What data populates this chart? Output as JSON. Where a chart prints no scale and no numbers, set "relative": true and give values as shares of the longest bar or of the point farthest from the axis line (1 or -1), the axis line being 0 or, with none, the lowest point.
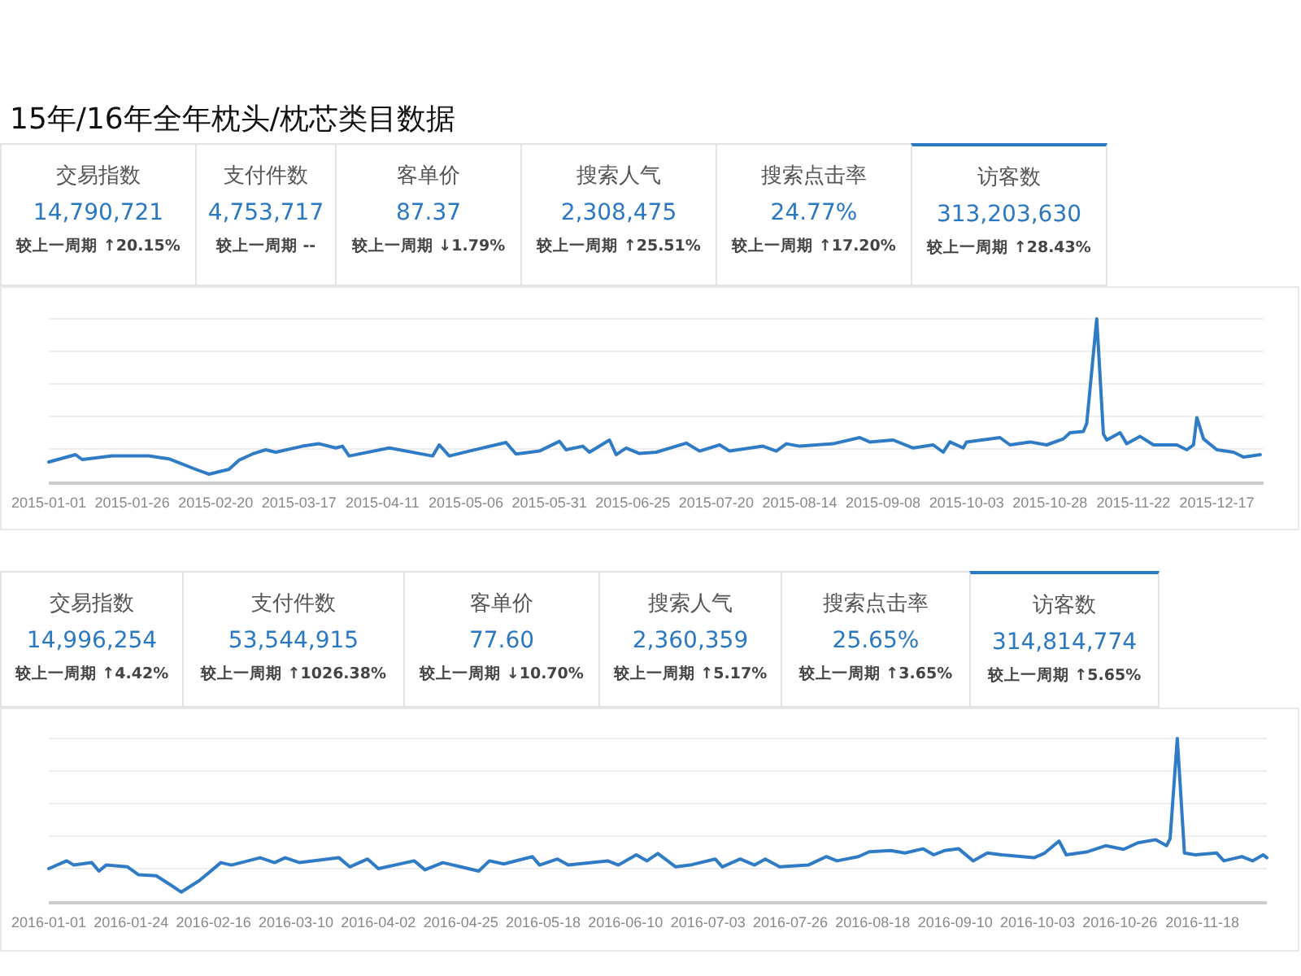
{
  "chart_data": [
    {
      "type": "other",
      "title": "15年/16年全年枕头/枕芯类目数据",
      "categories": [
        "交易指数",
        "支付件数",
        "客单价",
        "搜索人气",
        "搜索点击率",
        "访客数"
      ],
      "value_labels": [
        "14,790,721",
        "4,753,717",
        "87.37",
        "2,308,475",
        "24.77%",
        "313,203,630"
      ],
      "annotations": [
        "较上一周期 ↑20.15%",
        "较上一周期 --",
        "较上一周期 ↓1.79%",
        "较上一周期 ↑25.51%",
        "较上一周期 ↑17.20%",
        "较上一周期 ↑28.43%"
      ]
    },
    {
      "type": "line",
      "relative": true,
      "grid": "y",
      "color": "#2f7bc5",
      "x": [
        "2015-01-01",
        "2015-01-09",
        "2015-01-11",
        "2015-01-20",
        "2015-01-31",
        "2015-02-06",
        "2015-02-14",
        "2015-02-18",
        "2015-02-24",
        "2015-02-27",
        "2015-03-03",
        "2015-03-07",
        "2015-03-10",
        "2015-03-18",
        "2015-03-23",
        "2015-03-28",
        "2015-03-30",
        "2015-04-01",
        "2015-04-13",
        "2015-04-26",
        "2015-04-28",
        "2015-05-01",
        "2015-05-07",
        "2015-05-18",
        "2015-05-21",
        "2015-05-28",
        "2015-06-03",
        "2015-06-05",
        "2015-06-10",
        "2015-06-12",
        "2015-06-18",
        "2015-06-20",
        "2015-06-23",
        "2015-06-27",
        "2015-07-02",
        "2015-07-11",
        "2015-07-15",
        "2015-07-21",
        "2015-07-24",
        "2015-08-03",
        "2015-08-07",
        "2015-08-10",
        "2015-08-14",
        "2015-08-24",
        "2015-09-01",
        "2015-09-04",
        "2015-09-11",
        "2015-09-17",
        "2015-09-23",
        "2015-09-26",
        "2015-09-28",
        "2015-10-02",
        "2015-10-03",
        "2015-10-13",
        "2015-10-16",
        "2015-10-22",
        "2015-10-27",
        "2015-11-01",
        "2015-11-03",
        "2015-11-07",
        "2015-11-08",
        "2015-11-11",
        "2015-11-13",
        "2015-11-14",
        "2015-11-18",
        "2015-11-20",
        "2015-11-24",
        "2015-11-28",
        "2015-12-05",
        "2015-12-08",
        "2015-12-10",
        "2015-12-11",
        "2015-12-13",
        "2015-12-17",
        "2015-12-22",
        "2015-12-25",
        "2015-12-30"
      ],
      "values": [
        0.12,
        0.165,
        0.135,
        0.157,
        0.157,
        0.139,
        0.075,
        0.045,
        0.075,
        0.131,
        0.169,
        0.195,
        0.18,
        0.217,
        0.232,
        0.206,
        0.217,
        0.157,
        0.206,
        0.157,
        0.225,
        0.157,
        0.187,
        0.24,
        0.169,
        0.187,
        0.247,
        0.195,
        0.217,
        0.18,
        0.255,
        0.165,
        0.206,
        0.172,
        0.18,
        0.236,
        0.187,
        0.225,
        0.187,
        0.217,
        0.187,
        0.232,
        0.217,
        0.232,
        0.27,
        0.243,
        0.255,
        0.206,
        0.225,
        0.18,
        0.243,
        0.206,
        0.243,
        0.27,
        0.225,
        0.243,
        0.225,
        0.262,
        0.3,
        0.307,
        0.356,
        1.0,
        0.292,
        0.255,
        0.3,
        0.232,
        0.277,
        0.225,
        0.225,
        0.195,
        0.225,
        0.393,
        0.262,
        0.195,
        0.18,
        0.15,
        0.165
      ],
      "xlim": [
        "2015-01-01",
        "2015-12-31"
      ],
      "xticks": [
        "2015-01-01",
        "2015-01-26",
        "2015-02-20",
        "2015-03-17",
        "2015-04-11",
        "2015-05-06",
        "2015-05-31",
        "2015-06-25",
        "2015-07-20",
        "2015-08-14",
        "2015-09-08",
        "2015-10-03",
        "2015-10-28",
        "2015-11-22",
        "2015-12-17"
      ]
    },
    {
      "type": "other",
      "categories": [
        "交易指数",
        "支付件数",
        "客单价",
        "搜索人气",
        "搜索点击率",
        "访客数"
      ],
      "value_labels": [
        "14,996,254",
        "53,544,915",
        "77.60",
        "2,360,359",
        "25.65%",
        "314,814,774"
      ],
      "annotations": [
        "较上一周期 ↑4.42%",
        "较上一周期 ↑1026.38%",
        "较上一周期 ↓10.70%",
        "较上一周期 ↑5.17%",
        "较上一周期 ↑3.65%",
        "较上一周期 ↑5.65%"
      ]
    },
    {
      "type": "line",
      "relative": true,
      "grid": "y",
      "color": "#2f7bc5",
      "x": [
        "2016-01-01",
        "2016-01-06",
        "2016-01-08",
        "2016-01-13",
        "2016-01-15",
        "2016-01-17",
        "2016-01-23",
        "2016-01-26",
        "2016-01-31",
        "2016-02-04",
        "2016-02-07",
        "2016-02-12",
        "2016-02-18",
        "2016-02-21",
        "2016-02-29",
        "2016-03-04",
        "2016-03-07",
        "2016-03-11",
        "2016-03-22",
        "2016-03-25",
        "2016-03-30",
        "2016-04-02",
        "2016-04-12",
        "2016-04-15",
        "2016-04-20",
        "2016-04-25",
        "2016-04-30",
        "2016-05-03",
        "2016-05-07",
        "2016-05-15",
        "2016-05-17",
        "2016-05-22",
        "2016-05-25",
        "2016-06-05",
        "2016-06-08",
        "2016-06-13",
        "2016-06-16",
        "2016-06-19",
        "2016-06-24",
        "2016-06-28",
        "2016-07-05",
        "2016-07-07",
        "2016-07-12",
        "2016-07-16",
        "2016-07-19",
        "2016-07-23",
        "2016-07-31",
        "2016-08-05",
        "2016-08-08",
        "2016-08-14",
        "2016-08-17",
        "2016-08-23",
        "2016-08-27",
        "2016-09-01",
        "2016-09-04",
        "2016-09-07",
        "2016-09-11",
        "2016-09-15",
        "2016-09-19",
        "2016-09-23",
        "2016-10-02",
        "2016-10-05",
        "2016-10-09",
        "2016-10-11",
        "2016-10-17",
        "2016-10-22",
        "2016-10-27",
        "2016-10-31",
        "2016-11-05",
        "2016-11-08",
        "2016-11-09",
        "2016-11-11",
        "2016-11-13",
        "2016-11-16",
        "2016-11-22",
        "2016-11-24",
        "2016-11-29",
        "2016-12-02",
        "2016-12-05",
        "2016-12-06"
      ],
      "values": [
        0.2,
        0.248,
        0.222,
        0.237,
        0.185,
        0.222,
        0.211,
        0.163,
        0.156,
        0.1,
        0.056,
        0.126,
        0.237,
        0.222,
        0.267,
        0.237,
        0.267,
        0.237,
        0.267,
        0.211,
        0.259,
        0.2,
        0.248,
        0.193,
        0.237,
        0.211,
        0.185,
        0.248,
        0.229,
        0.274,
        0.222,
        0.259,
        0.222,
        0.248,
        0.222,
        0.285,
        0.248,
        0.293,
        0.211,
        0.222,
        0.259,
        0.211,
        0.259,
        0.222,
        0.259,
        0.211,
        0.222,
        0.274,
        0.248,
        0.274,
        0.304,
        0.311,
        0.296,
        0.322,
        0.285,
        0.311,
        0.322,
        0.248,
        0.296,
        0.285,
        0.267,
        0.296,
        0.37,
        0.285,
        0.304,
        0.341,
        0.319,
        0.359,
        0.378,
        0.341,
        0.385,
        1.0,
        0.296,
        0.285,
        0.296,
        0.248,
        0.274,
        0.248,
        0.285,
        0.267
      ],
      "xlim": [
        "2016-01-01",
        "2016-12-06"
      ],
      "xticks": [
        "2016-01-01",
        "2016-01-24",
        "2016-02-16",
        "2016-03-10",
        "2016-04-02",
        "2016-04-25",
        "2016-05-18",
        "2016-06-10",
        "2016-07-03",
        "2016-07-26",
        "2016-08-18",
        "2016-09-10",
        "2016-10-03",
        "2016-10-26",
        "2016-11-18"
      ]
    }
  ]
}
